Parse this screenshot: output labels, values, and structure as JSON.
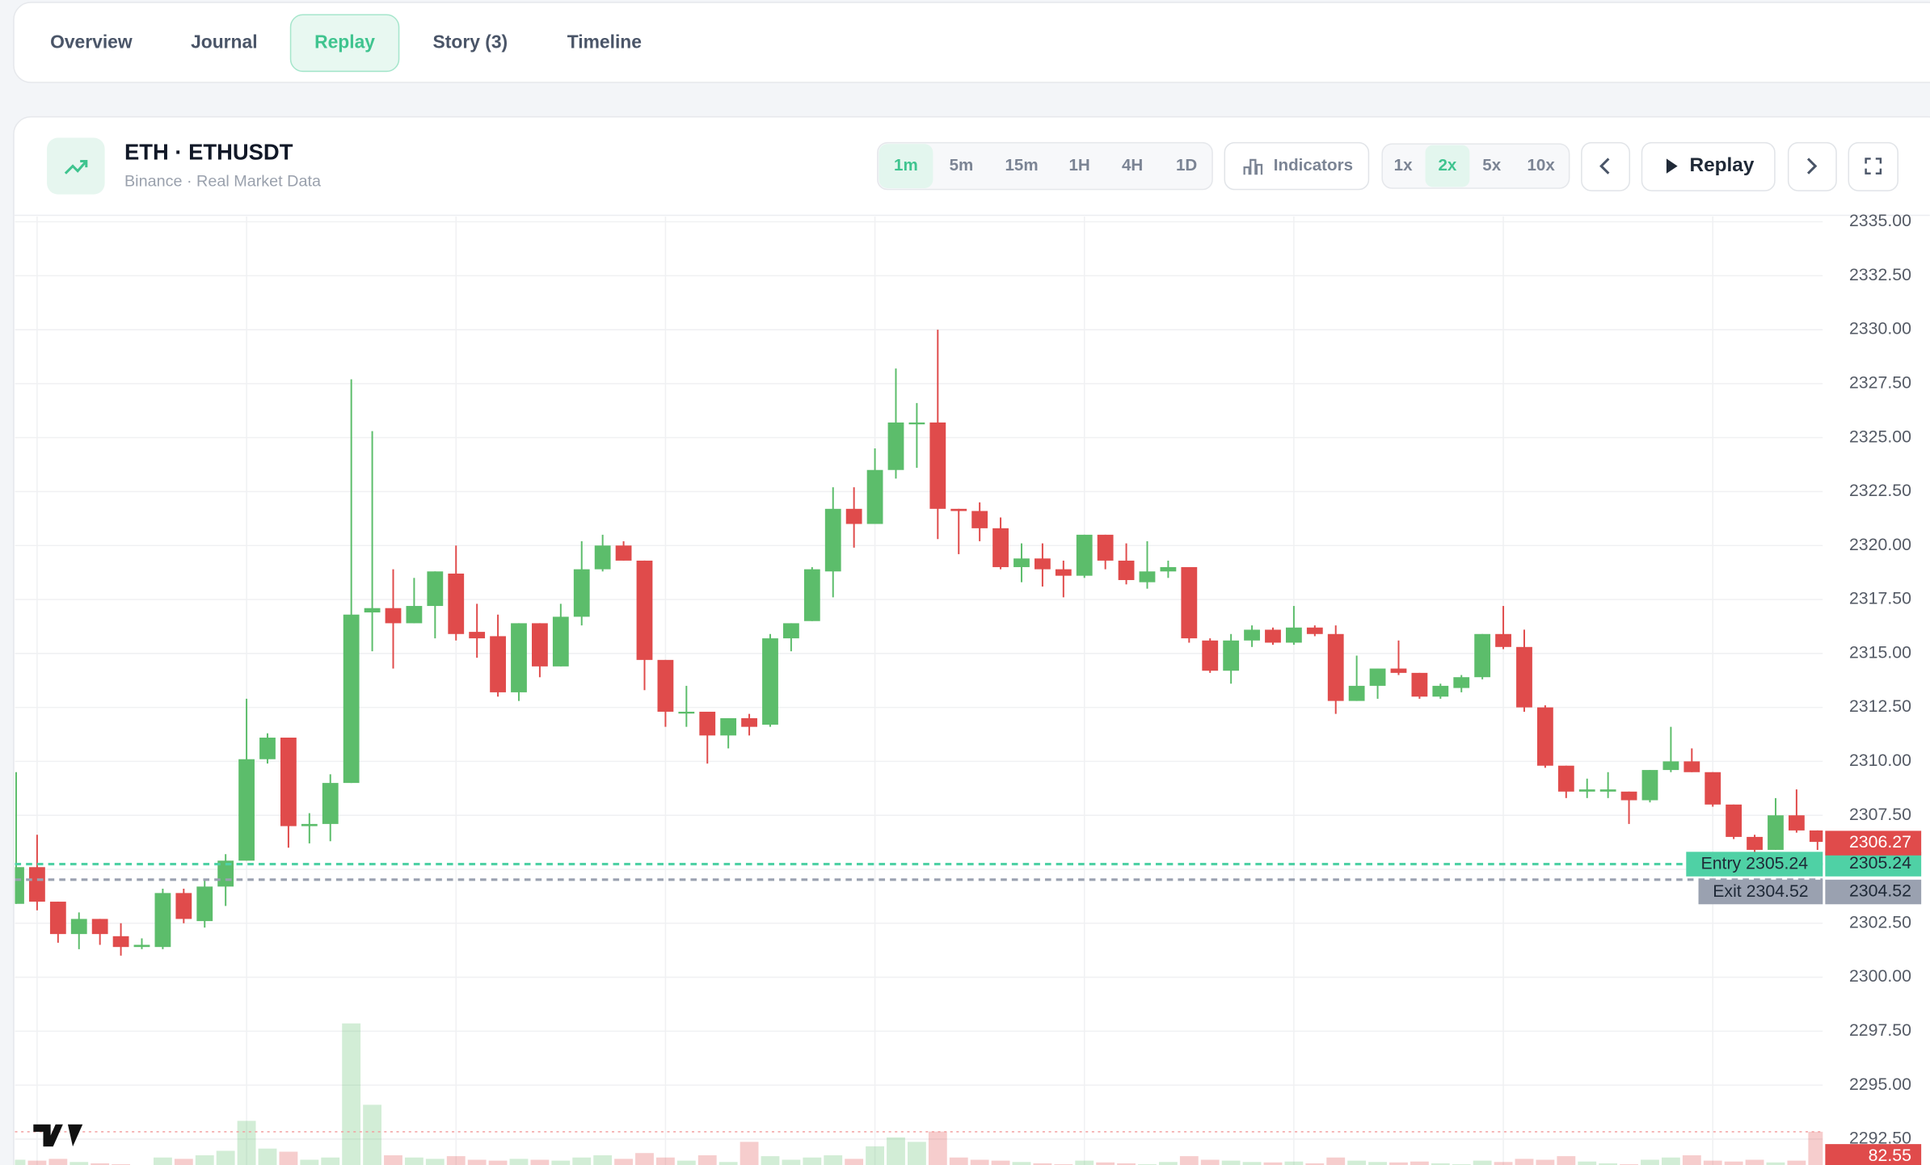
{
  "tabs": [
    {
      "label": "Overview"
    },
    {
      "label": "Journal"
    },
    {
      "label": "Replay",
      "active": true
    },
    {
      "label": "Story (3)"
    },
    {
      "label": "Timeline"
    }
  ],
  "header": {
    "title": "ETH · ETHUSDT",
    "subtitle": "Binance · Real Market Data"
  },
  "timeframes": [
    {
      "label": "1m",
      "active": true
    },
    {
      "label": "5m"
    },
    {
      "label": "15m"
    },
    {
      "label": "1H"
    },
    {
      "label": "4H"
    },
    {
      "label": "1D"
    }
  ],
  "indicators_button": "Indicators",
  "speeds": [
    {
      "label": "1x"
    },
    {
      "label": "2x",
      "active": true
    },
    {
      "label": "5x"
    },
    {
      "label": "10x"
    }
  ],
  "replay_button": "Replay",
  "chart_data": {
    "type": "candlestick",
    "up_color": "#5cbd6b",
    "down_color": "#e04b4b",
    "ylim": [
      2291.3,
      2335.3
    ],
    "yticks": [
      {
        "value": 2335,
        "label": "2335.00"
      },
      {
        "value": 2332.5,
        "label": "2332.50"
      },
      {
        "value": 2330,
        "label": "2330.00"
      },
      {
        "value": 2327.5,
        "label": "2327.50"
      },
      {
        "value": 2325,
        "label": "2325.00"
      },
      {
        "value": 2322.5,
        "label": "2322.50"
      },
      {
        "value": 2320,
        "label": "2320.00"
      },
      {
        "value": 2317.5,
        "label": "2317.50"
      },
      {
        "value": 2315,
        "label": "2315.00"
      },
      {
        "value": 2312.5,
        "label": "2312.50"
      },
      {
        "value": 2310,
        "label": "2310.00"
      },
      {
        "value": 2307.5,
        "label": "2307.50"
      },
      {
        "value": 2305,
        "label": "2305.00"
      },
      {
        "value": 2302.5,
        "label": "2302.50"
      },
      {
        "value": 2300,
        "label": "2300.00"
      },
      {
        "value": 2297.5,
        "label": "2297.50"
      },
      {
        "value": 2295,
        "label": "2295.00"
      },
      {
        "value": 2292.5,
        "label": "2292.50"
      }
    ],
    "open": [
      2303.4,
      2305.1,
      2303.5,
      2302.0,
      2302.7,
      2301.9,
      2301.4,
      2301.4,
      2303.9,
      2302.6,
      2304.2,
      2305.4,
      2310.1,
      2311.1,
      2307.0,
      2307.1,
      2309.0,
      2316.9,
      2317.1,
      2316.4,
      2317.2,
      2318.7,
      2316.0,
      2315.8,
      2313.2,
      2316.4,
      2314.4,
      2316.7,
      2318.9,
      2320.0,
      2319.3,
      2314.7,
      2312.3,
      2312.3,
      2311.2,
      2312.0,
      2311.7,
      2315.7,
      2316.5,
      2318.8,
      2321.7,
      2321.0,
      2323.5,
      2325.7,
      2325.7,
      2321.7,
      2321.6,
      2320.8,
      2319.0,
      2319.4,
      2318.9,
      2318.6,
      2320.5,
      2319.3,
      2318.3,
      2318.8,
      2319.0,
      2315.6,
      2314.2,
      2315.6,
      2316.1,
      2315.5,
      2316.2,
      2315.9,
      2312.8,
      2313.5,
      2314.3,
      2314.1,
      2313.0,
      2313.4,
      2313.9,
      2315.9,
      2315.3,
      2312.5,
      2309.8,
      2308.6,
      2308.6,
      2308.6,
      2308.2,
      2309.6,
      2310.0,
      2309.5,
      2308.0,
      2306.5,
      2305.9,
      2307.5,
      2306.8
    ],
    "high": [
      2309.5,
      2306.6,
      2303.5,
      2303.0,
      2302.7,
      2302.5,
      2301.8,
      2304.1,
      2304.1,
      2304.5,
      2305.7,
      2312.9,
      2311.3,
      2311.1,
      2307.6,
      2309.4,
      2327.7,
      2325.3,
      2318.9,
      2318.5,
      2318.8,
      2320.0,
      2317.3,
      2316.8,
      2316.4,
      2316.4,
      2317.3,
      2320.2,
      2320.5,
      2320.2,
      2319.3,
      2314.7,
      2313.5,
      2312.3,
      2312.0,
      2312.2,
      2315.9,
      2316.4,
      2319.0,
      2322.7,
      2322.7,
      2324.5,
      2328.2,
      2326.6,
      2330.0,
      2321.7,
      2322.0,
      2321.3,
      2320.1,
      2320.1,
      2319.3,
      2320.5,
      2320.5,
      2320.1,
      2320.2,
      2319.3,
      2319.0,
      2315.7,
      2315.9,
      2316.3,
      2316.2,
      2317.2,
      2316.3,
      2316.3,
      2314.9,
      2314.3,
      2315.6,
      2314.1,
      2313.6,
      2314.0,
      2315.9,
      2317.2,
      2316.1,
      2312.6,
      2309.8,
      2309.2,
      2309.5,
      2308.6,
      2309.6,
      2311.6,
      2310.6,
      2309.5,
      2308.0,
      2306.6,
      2308.3,
      2308.7,
      2306.8
    ],
    "low": [
      2303.4,
      2303.1,
      2301.6,
      2301.3,
      2301.5,
      2301.0,
      2301.3,
      2301.3,
      2302.5,
      2302.3,
      2303.3,
      2305.4,
      2309.9,
      2306.0,
      2306.2,
      2306.3,
      2309.0,
      2315.1,
      2314.3,
      2316.4,
      2315.7,
      2315.6,
      2314.8,
      2313.0,
      2312.8,
      2313.9,
      2314.4,
      2316.3,
      2318.8,
      2319.3,
      2313.3,
      2311.6,
      2311.6,
      2309.9,
      2310.6,
      2311.2,
      2311.6,
      2315.1,
      2316.5,
      2317.6,
      2319.9,
      2321.0,
      2323.1,
      2323.6,
      2320.3,
      2319.6,
      2320.2,
      2318.9,
      2318.3,
      2318.1,
      2317.6,
      2318.5,
      2318.9,
      2318.2,
      2318.0,
      2318.5,
      2315.5,
      2314.1,
      2313.6,
      2315.3,
      2315.4,
      2315.4,
      2315.8,
      2312.2,
      2312.8,
      2312.9,
      2314.0,
      2312.9,
      2312.9,
      2313.2,
      2313.8,
      2315.2,
      2312.3,
      2309.7,
      2308.3,
      2308.3,
      2308.3,
      2307.1,
      2308.1,
      2309.5,
      2309.5,
      2307.9,
      2306.4,
      2305.8,
      2305.9,
      2306.7,
      2305.9
    ],
    "close": [
      2305.1,
      2303.5,
      2302.0,
      2302.7,
      2302.0,
      2301.4,
      2301.5,
      2303.9,
      2302.7,
      2304.2,
      2305.4,
      2310.1,
      2311.1,
      2307.0,
      2307.1,
      2309.0,
      2316.8,
      2317.1,
      2316.4,
      2317.2,
      2318.8,
      2315.9,
      2315.7,
      2313.2,
      2316.4,
      2314.4,
      2316.7,
      2318.9,
      2320.0,
      2319.3,
      2314.7,
      2312.3,
      2312.3,
      2311.2,
      2312.0,
      2311.6,
      2315.7,
      2316.4,
      2318.9,
      2321.7,
      2321.0,
      2323.5,
      2325.7,
      2325.7,
      2321.7,
      2321.6,
      2320.8,
      2319.0,
      2319.4,
      2318.9,
      2318.6,
      2320.5,
      2319.3,
      2318.4,
      2318.8,
      2319.0,
      2315.7,
      2314.2,
      2315.6,
      2316.1,
      2315.5,
      2316.2,
      2315.9,
      2312.8,
      2313.5,
      2314.3,
      2314.1,
      2313.0,
      2313.5,
      2313.9,
      2315.9,
      2315.3,
      2312.5,
      2309.8,
      2308.6,
      2308.7,
      2308.7,
      2308.2,
      2309.6,
      2310.0,
      2309.5,
      2308.0,
      2306.5,
      2305.9,
      2307.5,
      2306.8,
      2306.27
    ],
    "volume": [
      20,
      18,
      22,
      15,
      12,
      10,
      8,
      25,
      22,
      30,
      40,
      107,
      45,
      38,
      20,
      25,
      325,
      143,
      30,
      25,
      22,
      28,
      20,
      18,
      22,
      20,
      18,
      25,
      30,
      22,
      35,
      25,
      18,
      30,
      15,
      60,
      28,
      20,
      25,
      30,
      22,
      50,
      70,
      60,
      83,
      25,
      20,
      18,
      15,
      12,
      10,
      18,
      14,
      12,
      10,
      15,
      28,
      20,
      18,
      15,
      14,
      16,
      12,
      25,
      18,
      15,
      14,
      16,
      12,
      10,
      18,
      15,
      22,
      20,
      28,
      16,
      12,
      10,
      20,
      25,
      30,
      18,
      16,
      20,
      14,
      18,
      82.55
    ],
    "last_price": 2306.27,
    "entry": {
      "label": "Entry",
      "value": 2305.24,
      "color": "#4fd1a5"
    },
    "exit": {
      "label": "Exit",
      "value": 2304.52,
      "color": "#9aa1b0"
    }
  }
}
